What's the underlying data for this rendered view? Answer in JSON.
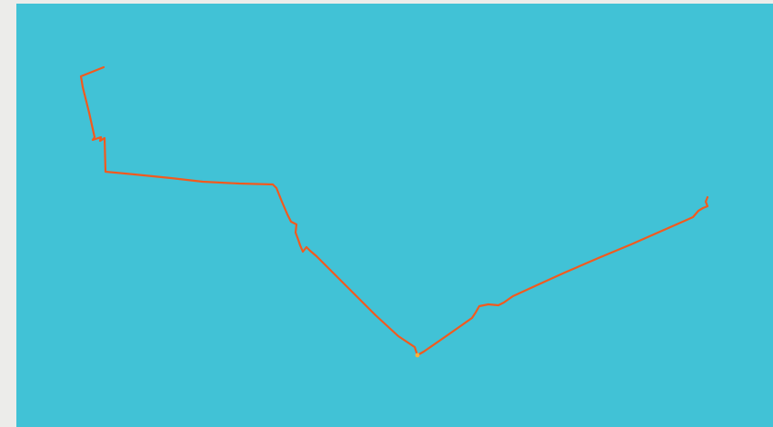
{
  "map": {
    "background_color": "#41c2d6",
    "route": {
      "color": "#f25a1e",
      "shape": "gps-track-polyline"
    }
  }
}
